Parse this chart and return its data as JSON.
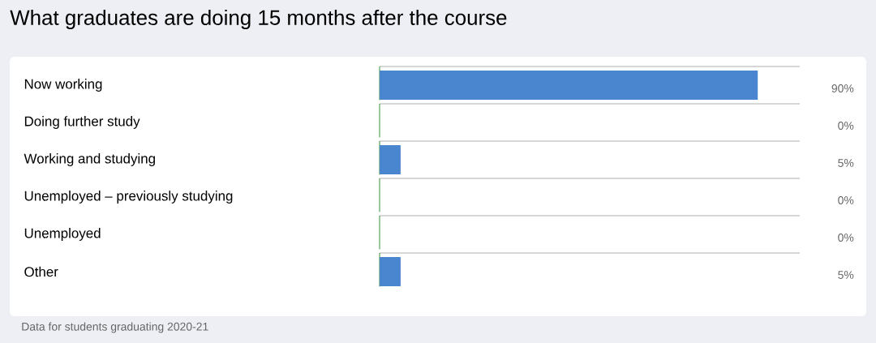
{
  "chart_data": {
    "type": "bar",
    "orientation": "horizontal",
    "title": "What graduates are doing 15 months after the course",
    "categories": [
      "Now working",
      "Doing further study",
      "Working and studying",
      "Unemployed – previously studying",
      "Unemployed",
      "Other"
    ],
    "values": [
      90,
      0,
      5,
      0,
      0,
      5
    ],
    "value_labels": [
      "90%",
      "0%",
      "5%",
      "0%",
      "0%",
      "5%"
    ],
    "color": "#4a86cf",
    "xlim": [
      0,
      100
    ],
    "tick_labels": "y",
    "annotations": [
      "Data for students graduating 2020-21"
    ]
  }
}
